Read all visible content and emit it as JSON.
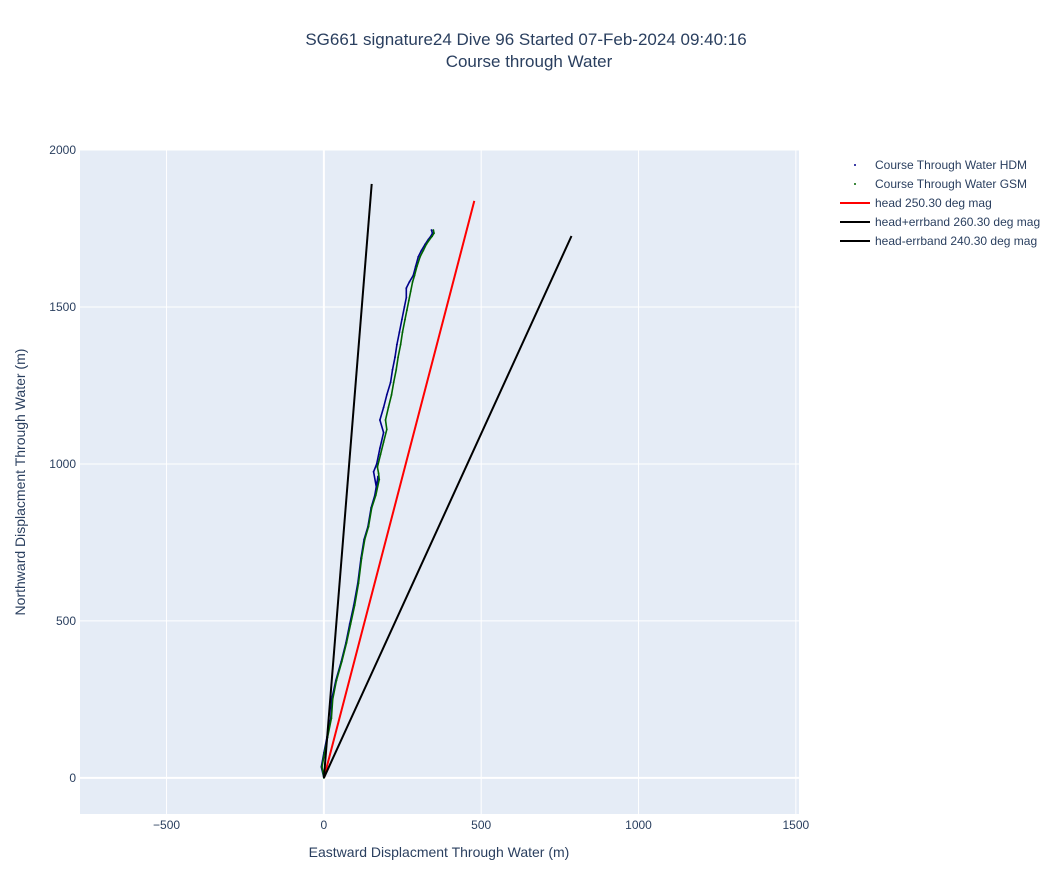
{
  "chart_data": {
    "type": "line",
    "title": "SG661 signature24 Dive 96 Started 07-Feb-2024 09:40:16",
    "subtitle": "Course through Water",
    "xlabel": "Eastward Displacment Through Water (m)",
    "ylabel": "Northward Displacment Through Water (m)",
    "xlim": [
      -775,
      1510
    ],
    "ylim": [
      -115,
      2000
    ],
    "xticks": [
      -500,
      0,
      500,
      1000,
      1500
    ],
    "xtick_labels": [
      "−500",
      "0",
      "500",
      "1000",
      "1500"
    ],
    "yticks": [
      0,
      500,
      1000,
      1500,
      2000
    ],
    "ytick_labels": [
      "0",
      "500",
      "1000",
      "1500",
      "2000"
    ],
    "grid": true,
    "legend_position": "top-right",
    "series": [
      {
        "name": "Course Through Water HDM",
        "color": "#00008b",
        "mode": "markers",
        "x": [
          0,
          -8,
          0,
          10,
          22,
          25,
          38,
          55,
          70,
          82,
          95,
          108,
          118,
          128,
          140,
          150,
          162,
          172,
          168,
          158,
          168,
          178,
          190,
          178,
          190,
          200,
          212,
          218,
          226,
          232,
          240,
          248,
          256,
          262,
          262,
          272,
          284,
          292,
          300,
          310,
          322,
          332,
          340,
          345,
          342
        ],
        "y": [
          0,
          35,
          80,
          130,
          190,
          250,
          310,
          370,
          430,
          490,
          550,
          620,
          700,
          760,
          800,
          860,
          900,
          960,
          920,
          975,
          1000,
          1050,
          1100,
          1140,
          1180,
          1220,
          1260,
          1300,
          1340,
          1380,
          1420,
          1460,
          1500,
          1530,
          1560,
          1580,
          1600,
          1630,
          1660,
          1680,
          1700,
          1715,
          1725,
          1735,
          1745
        ]
      },
      {
        "name": "Course Through Water GSM",
        "color": "#006400",
        "mode": "markers",
        "x": [
          0,
          -6,
          2,
          12,
          24,
          28,
          40,
          57,
          72,
          85,
          98,
          110,
          120,
          130,
          142,
          152,
          165,
          176,
          174,
          170,
          180,
          190,
          200,
          196,
          205,
          215,
          222,
          230,
          236,
          244,
          250,
          258,
          264,
          270,
          276,
          282,
          288,
          296,
          306,
          316,
          326,
          336,
          344,
          350,
          348
        ],
        "y": [
          0,
          35,
          80,
          130,
          190,
          250,
          310,
          370,
          430,
          490,
          550,
          620,
          700,
          760,
          800,
          860,
          900,
          950,
          970,
          990,
          1030,
          1070,
          1110,
          1140,
          1180,
          1220,
          1260,
          1300,
          1340,
          1380,
          1420,
          1460,
          1490,
          1520,
          1550,
          1580,
          1600,
          1630,
          1660,
          1680,
          1700,
          1715,
          1725,
          1735,
          1745
        ]
      },
      {
        "name": "head 250.30 deg mag",
        "color": "#ff0000",
        "mode": "lines",
        "x": [
          0,
          478
        ],
        "y": [
          0,
          1838
        ]
      },
      {
        "name": "head+errband 260.30 deg mag",
        "color": "#000000",
        "mode": "lines",
        "x": [
          0,
          152
        ],
        "y": [
          0,
          1892
        ]
      },
      {
        "name": "head-errband 240.30 deg mag",
        "color": "#000000",
        "mode": "lines",
        "x": [
          0,
          787
        ],
        "y": [
          0,
          1726
        ]
      }
    ]
  }
}
